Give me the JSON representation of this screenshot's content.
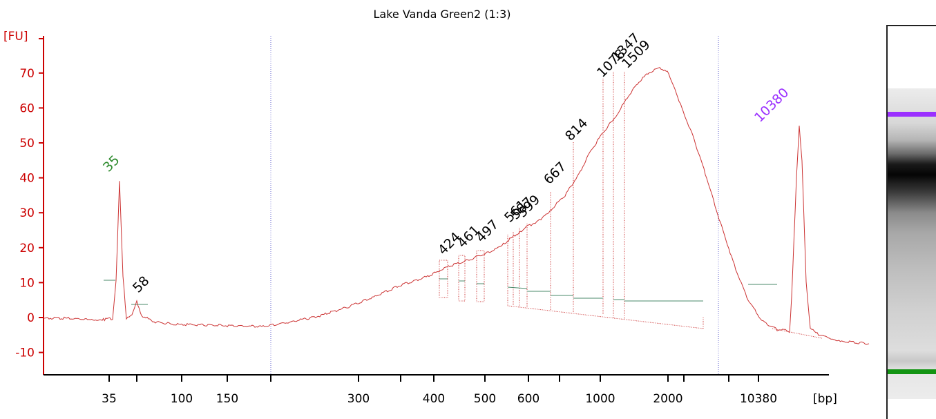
{
  "chart_data": {
    "type": "line",
    "title": "Lake Vanda Green2 (1:3)",
    "ylabel": "[FU]",
    "xlabel": "[bp]",
    "x_scale": "log (electropherogram)",
    "ylim": [
      -17,
      77
    ],
    "y_ticks": [
      -10,
      0,
      10,
      20,
      30,
      40,
      50,
      60,
      70
    ],
    "x_tick_labels": [
      "35",
      "100",
      "150",
      "300",
      "400",
      "500",
      "600",
      "1000",
      "2000",
      "10380"
    ],
    "peak_labels": [
      {
        "label": "35",
        "y": 39,
        "color": "#2e8b2e"
      },
      {
        "label": "58",
        "y": 4.5,
        "color": "#000000"
      },
      {
        "label": "424",
        "y": 16,
        "color": "#000000"
      },
      {
        "label": "461",
        "y": 17.5,
        "color": "#000000"
      },
      {
        "label": "497",
        "y": 19.5,
        "color": "#000000"
      },
      {
        "label": "561",
        "y": 25.5,
        "color": "#000000"
      },
      {
        "label": "587",
        "y": 27,
        "color": "#000000"
      },
      {
        "label": "599",
        "y": 28,
        "color": "#000000"
      },
      {
        "label": "667",
        "y": 36,
        "color": "#000000"
      },
      {
        "label": "814",
        "y": 48,
        "color": "#000000"
      },
      {
        "label": "1078",
        "y": 69,
        "color": "#000000"
      },
      {
        "label": "1347",
        "y": 71.5,
        "color": "#000000"
      },
      {
        "label": "1509",
        "y": 71,
        "color": "#000000"
      },
      {
        "label": "10380",
        "y": 55,
        "color": "#9b30ff"
      }
    ],
    "series": [
      {
        "points": [
          [
            0,
            -0.2
          ],
          [
            30,
            -0.2
          ],
          [
            60,
            -0.4
          ],
          [
            85,
            -0.6
          ],
          [
            90,
            -0.5
          ],
          [
            100,
            -0.3
          ],
          [
            105,
            10.3
          ],
          [
            110,
            39
          ],
          [
            115,
            12
          ],
          [
            120,
            -0.5
          ],
          [
            128,
            0.8
          ],
          [
            135,
            4.5
          ],
          [
            142,
            0.6
          ],
          [
            160,
            -1.2
          ],
          [
            190,
            -2
          ],
          [
            220,
            -2.1
          ],
          [
            260,
            -2.3
          ],
          [
            300,
            -2.5
          ],
          [
            318,
            -2.6
          ],
          [
            360,
            -1.2
          ],
          [
            400,
            0.5
          ],
          [
            440,
            3
          ],
          [
            480,
            6
          ],
          [
            520,
            9.5
          ],
          [
            560,
            12
          ],
          [
            578,
            14
          ],
          [
            600,
            15.5
          ],
          [
            630,
            17.5
          ],
          [
            660,
            20
          ],
          [
            675,
            22.5
          ],
          [
            690,
            24.5
          ],
          [
            700,
            26
          ],
          [
            720,
            28
          ],
          [
            735,
            31
          ],
          [
            755,
            35
          ],
          [
            775,
            41
          ],
          [
            790,
            47
          ],
          [
            810,
            53
          ],
          [
            830,
            58
          ],
          [
            845,
            63
          ],
          [
            860,
            67
          ],
          [
            875,
            70
          ],
          [
            892,
            71.5
          ],
          [
            905,
            70
          ],
          [
            920,
            62
          ],
          [
            940,
            52
          ],
          [
            960,
            40
          ],
          [
            980,
            27
          ],
          [
            1000,
            15
          ],
          [
            1020,
            5
          ],
          [
            1040,
            -1
          ],
          [
            1062,
            -3.5
          ],
          [
            1070,
            -3.5
          ],
          [
            1080,
            -4
          ],
          [
            1083,
            6
          ],
          [
            1090,
            40
          ],
          [
            1094,
            55
          ],
          [
            1098,
            45
          ],
          [
            1104,
            10
          ],
          [
            1110,
            -3
          ],
          [
            1118,
            -4.5
          ],
          [
            1140,
            -6
          ],
          [
            1165,
            -7
          ],
          [
            1180,
            -7.2
          ],
          [
            1195,
            -7.5
          ]
        ]
      }
    ]
  }
}
